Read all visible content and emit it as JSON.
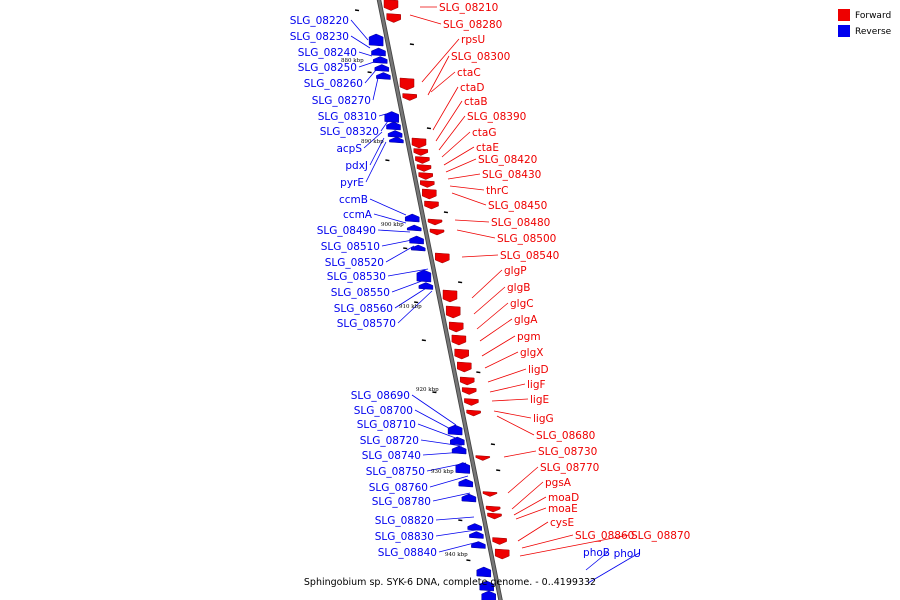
{
  "caption": "Sphingobium sp. SYK-6 DNA, complete genome. - 0..4199332",
  "legend": [
    {
      "label": "Forward",
      "color": "#ee0000"
    },
    {
      "label": "Reverse",
      "color": "#0000ee"
    }
  ],
  "colors": {
    "forward": "#ee0000",
    "reverse": "#0000ee",
    "backbone": "#777777"
  },
  "ticks": [
    "880 kbp",
    "890 kbp",
    "900 kbp",
    "910 kbp",
    "920 kbp",
    "930 kbp",
    "940 kbp"
  ],
  "forward_labels": [
    "SLG_08210",
    "SLG_08280",
    "rpsU",
    "SLG_08300",
    "ctaC",
    "ctaD",
    "ctaB",
    "SLG_08390",
    "ctaG",
    "ctaE",
    "SLG_08420",
    "SLG_08430",
    "thrC",
    "SLG_08450",
    "SLG_08480",
    "SLG_08500",
    "SLG_08540",
    "glgP",
    "glgB",
    "glgC",
    "glgA",
    "pgm",
    "glgX",
    "ligD",
    "ligF",
    "ligE",
    "ligG",
    "SLG_08680",
    "SLG_08730",
    "SLG_08770",
    "pgsA",
    "moaD",
    "moaE",
    "cysE",
    "SLG_08860",
    "SLG_08870"
  ],
  "reverse_labels": [
    "SLG_08220",
    "SLG_08230",
    "SLG_08240",
    "SLG_08250",
    "SLG_08260",
    "SLG_08270",
    "SLG_08310",
    "SLG_08320",
    "acpS",
    "pdxJ",
    "pyrE",
    "ccmB",
    "ccmA",
    "SLG_08490",
    "SLG_08510",
    "SLG_08520",
    "SLG_08530",
    "SLG_08550",
    "SLG_08560",
    "SLG_08570",
    "SLG_08690",
    "SLG_08700",
    "SLG_08710",
    "SLG_08720",
    "SLG_08740",
    "SLG_08750",
    "SLG_08760",
    "SLG_08780",
    "SLG_08820",
    "SLG_08830",
    "SLG_08840",
    "phoB",
    "phoU"
  ]
}
